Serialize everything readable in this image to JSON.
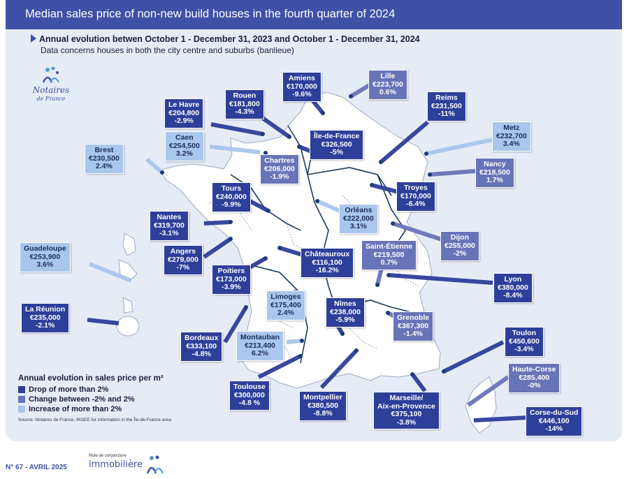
{
  "title": "Median sales price of non-new build houses in the fourth quarter of 2024",
  "subtitle": "Annual evolution betwen October 1 - December 31, 2023 and October 1 - December 31, 2024",
  "note": "Data concerns houses in both the city centre and suburbs (banlieue)",
  "logo": {
    "name": "Notaires",
    "sub": "de France"
  },
  "cities": [
    {
      "id": "amiens",
      "name": "Amiens",
      "price": "€170,000",
      "change": "-9.6%",
      "cat": "drop"
    },
    {
      "id": "lille",
      "name": "Lille",
      "price": "€223,700",
      "change": "0.6%",
      "cat": "change"
    },
    {
      "id": "rouen",
      "name": "Rouen",
      "price": "€181,800",
      "change": "-4.3%",
      "cat": "drop"
    },
    {
      "id": "lehavre",
      "name": "Le Havre",
      "price": "€204,800",
      "change": "-2.9%",
      "cat": "drop"
    },
    {
      "id": "reims",
      "name": "Reims",
      "price": "€231,500",
      "change": "-11%",
      "cat": "drop"
    },
    {
      "id": "metz",
      "name": "Metz",
      "price": "€232,700",
      "change": "3.4%",
      "cat": "incr"
    },
    {
      "id": "caen",
      "name": "Caen",
      "price": "€254,500",
      "change": "3.2%",
      "cat": "incr"
    },
    {
      "id": "iledefrance",
      "name": "Île-de-France",
      "price": "€326,500",
      "change": "-5%",
      "cat": "drop"
    },
    {
      "id": "brest",
      "name": "Brest",
      "price": "€230,500",
      "change": "2.4%",
      "cat": "incr"
    },
    {
      "id": "chartres",
      "name": "Chartres",
      "price": "€206,000",
      "change": "-1.9%",
      "cat": "change"
    },
    {
      "id": "nancy",
      "name": "Nancy",
      "price": "€218,500",
      "change": "1.7%",
      "cat": "change"
    },
    {
      "id": "tours",
      "name": "Tours",
      "price": "€240,000",
      "change": "-9.9%",
      "cat": "drop"
    },
    {
      "id": "troyes",
      "name": "Troyes",
      "price": "€170,000",
      "change": "-6.4%",
      "cat": "drop"
    },
    {
      "id": "orleans",
      "name": "Orléans",
      "price": "€222,000",
      "change": "3.1%",
      "cat": "incr"
    },
    {
      "id": "nantes",
      "name": "Nantes",
      "price": "€319,700",
      "change": "-3.1%",
      "cat": "drop"
    },
    {
      "id": "dijon",
      "name": "Dijon",
      "price": "€255,000",
      "change": "-2%",
      "cat": "change"
    },
    {
      "id": "guadeloupe",
      "name": "Guadeloupe",
      "price": "€253,900",
      "change": "3.6%",
      "cat": "incr"
    },
    {
      "id": "angers",
      "name": "Angers",
      "price": "€279,000",
      "change": "-7%",
      "cat": "drop"
    },
    {
      "id": "chateauroux",
      "name": "Châteauroux",
      "price": "€116,100",
      "change": "-16.2%",
      "cat": "drop"
    },
    {
      "id": "saintetienne",
      "name": "Saint-Étienne",
      "price": "€219,500",
      "change": "0.7%",
      "cat": "change"
    },
    {
      "id": "poitiers",
      "name": "Poitiers",
      "price": "€173,000",
      "change": "-3.9%",
      "cat": "drop"
    },
    {
      "id": "lyon",
      "name": "Lyon",
      "price": "€380,000",
      "change": "-8.4%",
      "cat": "drop"
    },
    {
      "id": "limoges",
      "name": "Limoges",
      "price": "€175,400",
      "change": "2.4%",
      "cat": "incr"
    },
    {
      "id": "nimes",
      "name": "Nîmes",
      "price": "€238,000",
      "change": "-5.9%",
      "cat": "drop"
    },
    {
      "id": "lareunion",
      "name": "La Réunion",
      "price": "€235,000",
      "change": "-2.1%",
      "cat": "drop"
    },
    {
      "id": "grenoble",
      "name": "Grenoble",
      "price": "€367,300",
      "change": "-1.4%",
      "cat": "change"
    },
    {
      "id": "toulon",
      "name": "Toulon",
      "price": "€450,600",
      "change": "-3.4%",
      "cat": "drop"
    },
    {
      "id": "bordeaux",
      "name": "Bordeaux",
      "price": "€333,100",
      "change": "-4.8%",
      "cat": "drop"
    },
    {
      "id": "montauban",
      "name": "Montauban",
      "price": "€213,400",
      "change": "6.2%",
      "cat": "incr"
    },
    {
      "id": "hautecorse",
      "name": "Haute-Corse",
      "price": "€285,400",
      "change": "-0%",
      "cat": "change"
    },
    {
      "id": "toulouse",
      "name": "Toulouse",
      "price": "€300,000",
      "change": "-4.8 %",
      "cat": "drop"
    },
    {
      "id": "montpellier",
      "name": "Montpellier",
      "price": "€380,500",
      "change": "-8.8%",
      "cat": "drop"
    },
    {
      "id": "marseille",
      "name": "Marseille/",
      "name2": "Aix-en-Provence",
      "price": "€375,100",
      "change": "-3.8%",
      "cat": "drop"
    },
    {
      "id": "corsedusud",
      "name": "Corse-du-Sud",
      "price": "€446,100",
      "change": "-14%",
      "cat": "drop"
    }
  ],
  "legend": {
    "title": "Annual evolution in sales price per m²",
    "items": [
      {
        "label": "Drop of more than 2%",
        "color": "#2e3f9a"
      },
      {
        "label": "Change between -2% and 2%",
        "color": "#6874b8"
      },
      {
        "label": "Increase of more than 2%",
        "color": "#a9c6ec"
      }
    ],
    "source": "Source: Notaires de France, INSEE for information in the Île-de-France area"
  },
  "footer": {
    "issue": "N° 67 - AVRIL 2025",
    "small": "Note de conjoncture",
    "brand": "immobilière"
  },
  "colors": {
    "title_bar": "#3f50a6",
    "background": "#e6ecf6"
  }
}
